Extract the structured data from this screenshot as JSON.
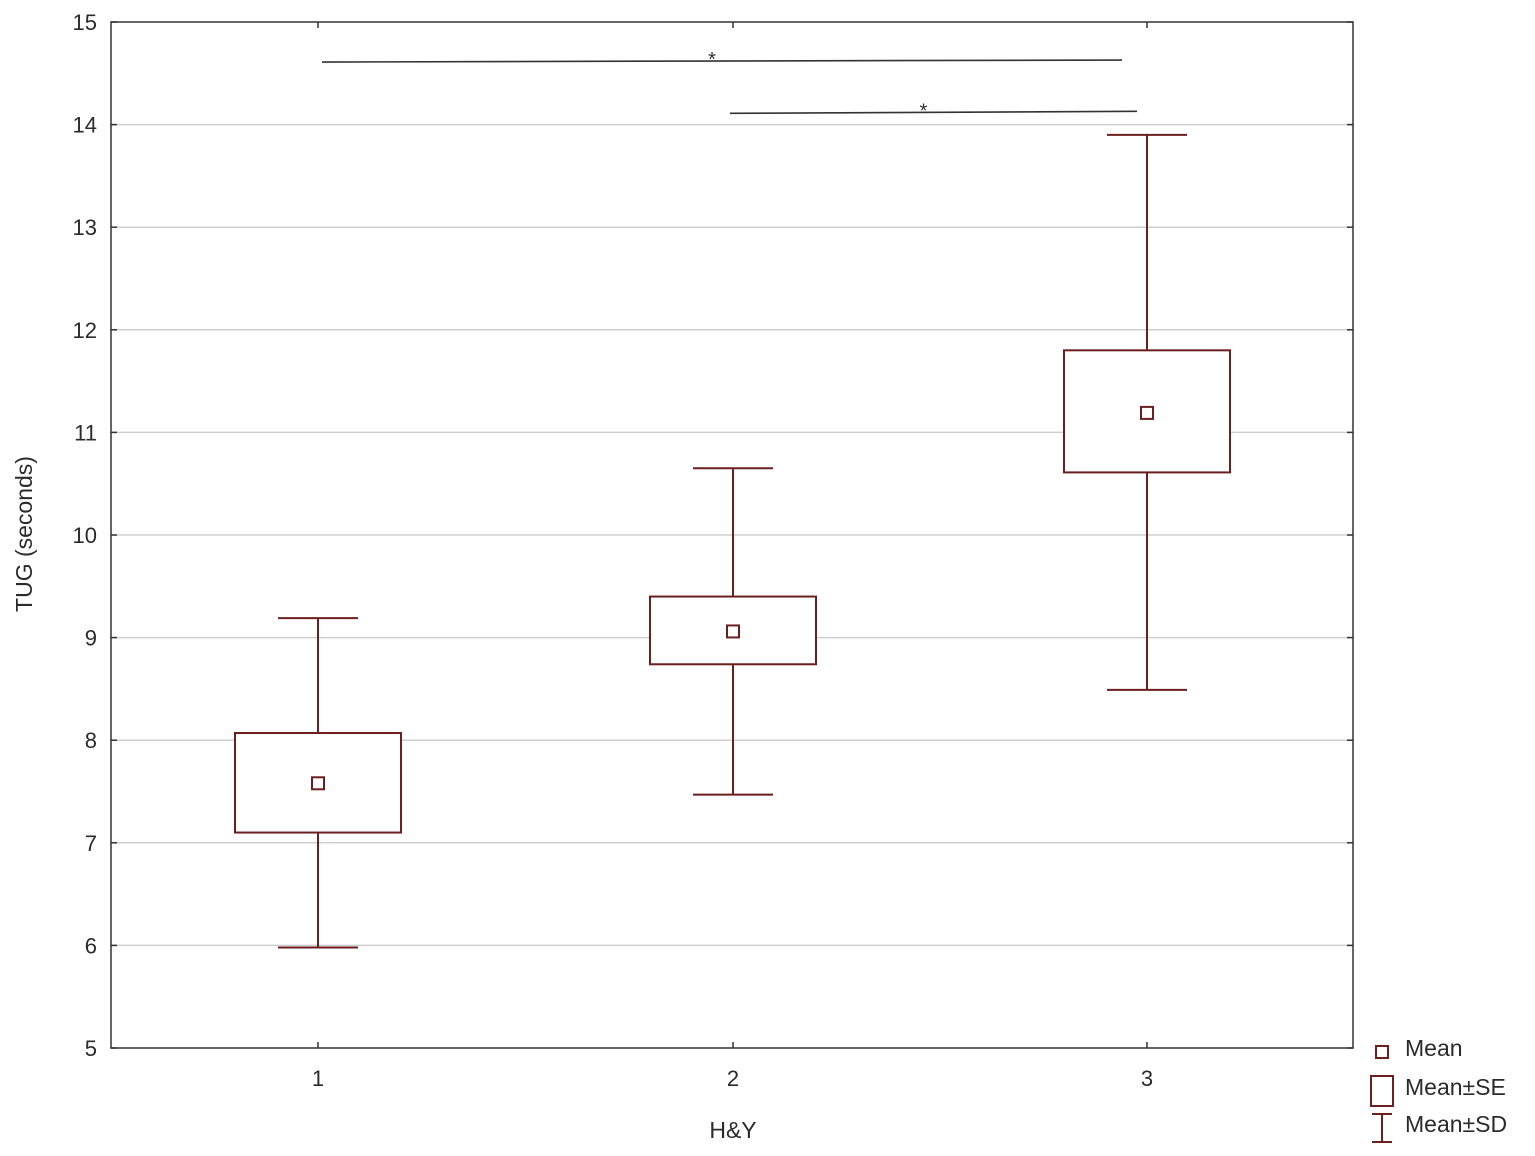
{
  "chart_data": {
    "type": "box",
    "xlabel": "H&Y",
    "ylabel": "TUG (seconds)",
    "ylim": [
      5,
      15
    ],
    "yticks": [
      "5",
      "6",
      "7",
      "8",
      "9",
      "10",
      "11",
      "12",
      "13",
      "14",
      "15"
    ],
    "categories": [
      "1",
      "2",
      "3"
    ],
    "grid": "horizontal",
    "legend_position": "bottom-right",
    "groups": [
      {
        "category": "1",
        "mean": 7.58,
        "mean_minus_se": 7.1,
        "mean_plus_se": 8.07,
        "mean_minus_sd": 5.98,
        "mean_plus_sd": 9.19
      },
      {
        "category": "2",
        "mean": 9.06,
        "mean_minus_se": 8.74,
        "mean_plus_se": 9.4,
        "mean_minus_sd": 7.47,
        "mean_plus_sd": 10.65
      },
      {
        "category": "3",
        "mean": 11.19,
        "mean_minus_se": 10.61,
        "mean_plus_se": 11.8,
        "mean_minus_sd": 8.49,
        "mean_plus_sd": 13.9
      }
    ],
    "significance": [
      {
        "from": "1",
        "to": "3",
        "y": 14.61,
        "label": "*"
      },
      {
        "from": "2",
        "to": "3",
        "y": 14.11,
        "label": "*"
      }
    ],
    "legend": [
      {
        "symbol": "mean-marker",
        "label": "Mean"
      },
      {
        "symbol": "se-box",
        "label": "Mean±SE"
      },
      {
        "symbol": "sd-whisker",
        "label": "Mean±SD"
      }
    ],
    "colors": {
      "box": "#6b1f1f",
      "grid": "#cfcfcf",
      "axis": "#333333",
      "significance_line": "#333333"
    }
  }
}
